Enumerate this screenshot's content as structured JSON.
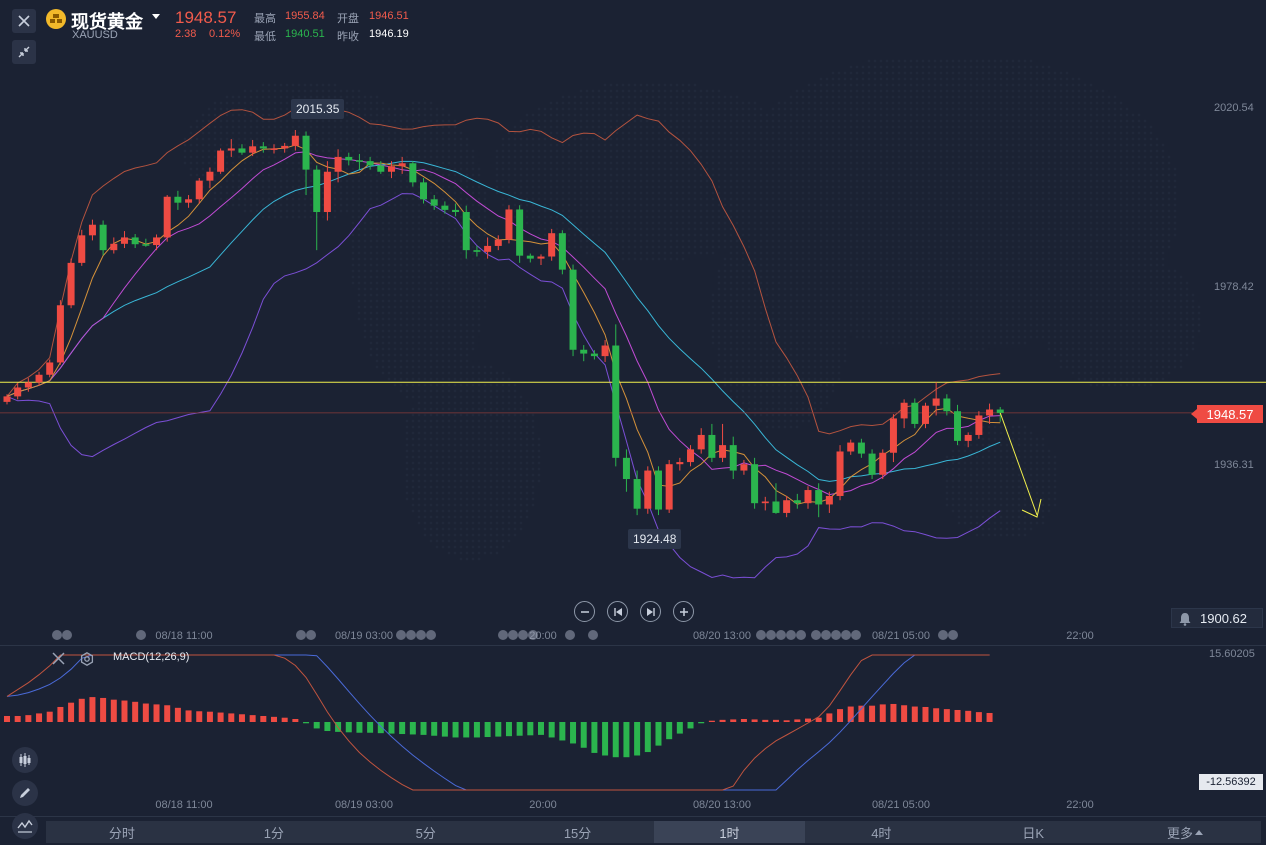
{
  "header": {
    "title": "现货黄金",
    "symbol": "XAUUSD",
    "price": "1948.57",
    "change": "2.38",
    "change_pct": "0.12%",
    "high_label": "最高",
    "high": "1955.84",
    "low_label": "最低",
    "low": "1940.51",
    "open_label": "开盘",
    "open": "1946.51",
    "prev_close_label": "昨收",
    "prev_close": "1946.19"
  },
  "price_axis": {
    "labels": [
      "2020.54",
      "1978.42",
      "1936.31"
    ],
    "current_price": "1948.57",
    "alert_value": "1900.62"
  },
  "callouts": {
    "high_marker": "2015.35",
    "low_marker": "1924.48"
  },
  "time_axis": {
    "main": [
      "08/18 11:00",
      "08/19 03:00",
      "20:00",
      "08/20 13:00",
      "08/21 05:00",
      "22:00"
    ],
    "macd": [
      "08/18 11:00",
      "08/19 03:00",
      "20:00",
      "08/20 13:00",
      "08/21 05:00",
      "22:00"
    ]
  },
  "macd": {
    "title": "MACD(12,26,9)",
    "top_label": "15.60205",
    "bottom_label": "-12.56392",
    "bottom_hidden": "-15.60205"
  },
  "tabs": [
    "分时",
    "1分",
    "5分",
    "15分",
    "1时",
    "4时",
    "日K",
    "更多"
  ],
  "active_tab": "1时",
  "colors": {
    "up": "#ef4b43",
    "down": "#2bb54e",
    "background": "#1b2233",
    "hline": "#f2f04c",
    "current_price": "#ef4b43"
  },
  "icons": [
    "close-icon",
    "gold-logo-icon",
    "dropdown-arrow-icon",
    "compress-icon",
    "zoom-out-icon",
    "prev-icon",
    "next-icon",
    "zoom-in-icon",
    "bell-icon",
    "settings-icon",
    "candlestick-tool-icon",
    "pencil-icon",
    "indicator-icon"
  ],
  "chart_data": [
    {
      "type": "candlestick",
      "title": "现货黄金 XAUUSD",
      "interval": "1时",
      "ylim": [
        1900.62,
        2028.0
      ],
      "series": [
        {
          "name": "",
          "values": [
            [
              1951.2,
              1953.0,
              1950.6,
              1952.5
            ],
            [
              1952.5,
              1955.5,
              1951.8,
              1954.6
            ],
            [
              1954.6,
              1956.8,
              1953.6,
              1955.8
            ],
            [
              1955.8,
              1958.3,
              1955.0,
              1957.6
            ],
            [
              1957.6,
              1961.2,
              1957.0,
              1960.5
            ],
            [
              1960.5,
              1975.2,
              1960.0,
              1974.0
            ],
            [
              1974.0,
              1985.0,
              1973.3,
              1984.0
            ],
            [
              1984.0,
              1991.8,
              1983.3,
              1990.5
            ],
            [
              1990.5,
              1994.2,
              1989.3,
              1993.0
            ],
            [
              1993.0,
              1994.0,
              1985.8,
              1987.0
            ],
            [
              1987.0,
              1990.0,
              1986.2,
              1988.5
            ],
            [
              1988.5,
              1991.5,
              1987.5,
              1990.0
            ],
            [
              1990.0,
              1990.8,
              1987.5,
              1988.4
            ],
            [
              1988.4,
              1989.7,
              1987.8,
              1988.2
            ],
            [
              1988.2,
              1990.7,
              1987.0,
              1990.0
            ],
            [
              1990.0,
              2000.0,
              1989.0,
              1999.6
            ],
            [
              1999.6,
              2001.0,
              1996.5,
              1998.2
            ],
            [
              1998.2,
              2000.0,
              1997.0,
              1999.0
            ],
            [
              1999.0,
              2004.0,
              1998.0,
              2003.4
            ],
            [
              2003.4,
              2006.5,
              2001.6,
              2005.5
            ],
            [
              2005.5,
              2011.0,
              2005.0,
              2010.5
            ],
            [
              2010.5,
              2013.2,
              2009.0,
              2011.0
            ],
            [
              2011.0,
              2012.0,
              2009.5,
              2010.0
            ],
            [
              2010.0,
              2013.0,
              2009.2,
              2011.5
            ],
            [
              2011.5,
              2012.5,
              2010.0,
              2011.0
            ],
            [
              2011.0,
              2012.0,
              2009.8,
              2011.0
            ],
            [
              2011.0,
              2012.3,
              2010.0,
              2011.6
            ],
            [
              2011.6,
              2015.35,
              2010.5,
              2014.0
            ],
            [
              2014.0,
              2015.0,
              2000.0,
              2006.0
            ],
            [
              2006.0,
              2007.0,
              1987.0,
              1996.0
            ],
            [
              1996.0,
              2008.0,
              1994.0,
              2005.5
            ],
            [
              2005.5,
              2010.8,
              2003.0,
              2009.0
            ],
            [
              2009.0,
              2010.0,
              2007.0,
              2008.2
            ],
            [
              2008.2,
              2009.7,
              2006.0,
              2008.0
            ],
            [
              2008.0,
              2009.0,
              2006.0,
              2007.0
            ],
            [
              2007.0,
              2008.0,
              2005.0,
              2005.5
            ],
            [
              2005.5,
              2008.0,
              2004.0,
              2006.8
            ],
            [
              2006.8,
              2009.0,
              2005.0,
              2007.5
            ],
            [
              2007.5,
              2008.0,
              2002.0,
              2003.0
            ],
            [
              2003.0,
              2004.0,
              1998.0,
              1999.0
            ],
            [
              1999.0,
              2000.0,
              1996.5,
              1997.5
            ],
            [
              1997.5,
              1998.5,
              1995.6,
              1996.5
            ],
            [
              1996.5,
              1998.0,
              1995.0,
              1996.0
            ],
            [
              1996.0,
              1997.5,
              1985.0,
              1987.0
            ],
            [
              1987.0,
              1988.0,
              1985.5,
              1986.6
            ],
            [
              1986.6,
              1990.0,
              1985.0,
              1988.0
            ],
            [
              1988.0,
              1990.5,
              1987.0,
              1989.5
            ],
            [
              1989.5,
              1997.6,
              1988.6,
              1996.6
            ],
            [
              1996.6,
              1997.6,
              1984.0,
              1985.7
            ],
            [
              1985.7,
              1986.2,
              1984.1,
              1985.0
            ],
            [
              1985.0,
              1986.0,
              1983.5,
              1985.5
            ],
            [
              1985.5,
              1992.0,
              1984.5,
              1991.0
            ],
            [
              1991.0,
              1991.7,
              1981.3,
              1982.4
            ],
            [
              1982.4,
              1983.6,
              1962.0,
              1963.5
            ],
            [
              1963.5,
              1964.6,
              1960.8,
              1962.6
            ],
            [
              1962.6,
              1963.4,
              1961.2,
              1962.0
            ],
            [
              1962.0,
              1965.8,
              1960.6,
              1964.5
            ],
            [
              1964.5,
              1969.5,
              1936.0,
              1938.0
            ],
            [
              1938.0,
              1940.0,
              1930.0,
              1933.0
            ],
            [
              1933.0,
              1935.0,
              1924.48,
              1926.0
            ],
            [
              1926.0,
              1936.0,
              1924.8,
              1935.0
            ],
            [
              1935.0,
              1936.0,
              1924.5,
              1925.8
            ],
            [
              1925.8,
              1937.5,
              1925.0,
              1936.5
            ],
            [
              1936.5,
              1938.0,
              1935.0,
              1937.0
            ],
            [
              1937.0,
              1941.0,
              1936.0,
              1940.0
            ],
            [
              1940.0,
              1945.0,
              1939.0,
              1943.4
            ],
            [
              1943.4,
              1946.0,
              1937.0,
              1938.0
            ],
            [
              1938.0,
              1946.0,
              1937.0,
              1941.0
            ],
            [
              1941.0,
              1943.0,
              1933.0,
              1935.0
            ],
            [
              1935.0,
              1937.5,
              1934.0,
              1936.5
            ],
            [
              1936.5,
              1938.0,
              1926.0,
              1927.3
            ],
            [
              1927.3,
              1928.8,
              1925.6,
              1927.7
            ],
            [
              1927.7,
              1932.0,
              1924.8,
              1925.0
            ],
            [
              1925.0,
              1929.0,
              1924.0,
              1928.0
            ],
            [
              1928.0,
              1929.5,
              1926.0,
              1927.3
            ],
            [
              1927.3,
              1931.3,
              1926.0,
              1930.4
            ],
            [
              1930.4,
              1932.0,
              1924.0,
              1927.0
            ],
            [
              1927.0,
              1930.0,
              1925.0,
              1929.0
            ],
            [
              1929.0,
              1941.0,
              1928.0,
              1939.5
            ],
            [
              1939.5,
              1942.3,
              1938.7,
              1941.6
            ],
            [
              1941.6,
              1942.5,
              1938.0,
              1939.0
            ],
            [
              1939.0,
              1940.0,
              1933.0,
              1934.0
            ],
            [
              1934.0,
              1940.0,
              1933.0,
              1939.2
            ],
            [
              1939.2,
              1948.3,
              1937.0,
              1947.3
            ],
            [
              1947.3,
              1951.8,
              1945.0,
              1951.0
            ],
            [
              1951.0,
              1952.0,
              1945.0,
              1946.0
            ],
            [
              1946.0,
              1951.0,
              1945.0,
              1950.3
            ],
            [
              1950.3,
              1955.84,
              1948.0,
              1952.0
            ],
            [
              1952.0,
              1953.0,
              1948.0,
              1949.0
            ],
            [
              1949.0,
              1950.5,
              1941.0,
              1942.0
            ],
            [
              1942.0,
              1944.0,
              1940.51,
              1943.4
            ],
            [
              1943.4,
              1949.0,
              1942.5,
              1948.0
            ],
            [
              1948.0,
              1950.8,
              1946.0,
              1949.4
            ],
            [
              1949.4,
              1950.0,
              1946.5,
              1948.6
            ]
          ]
        }
      ],
      "lines": [
        {
          "name": "hline",
          "value": 1955.84
        }
      ]
    },
    {
      "type": "bar",
      "title": "MACD(12,26,9)",
      "ylim": [
        -15.60205,
        15.60205
      ],
      "series": [
        {
          "name": "",
          "values": [
            1.4,
            1.4,
            1.6,
            2.0,
            2.4,
            3.5,
            4.5,
            5.4,
            5.8,
            5.6,
            5.2,
            5.0,
            4.7,
            4.3,
            4.1,
            3.9,
            3.3,
            2.7,
            2.5,
            2.4,
            2.2,
            2.0,
            1.8,
            1.6,
            1.4,
            1.2,
            1.0,
            0.7,
            -0.3,
            -1.5,
            -2.1,
            -2.3,
            -2.4,
            -2.5,
            -2.5,
            -2.6,
            -2.7,
            -2.8,
            -2.9,
            -3.0,
            -3.2,
            -3.4,
            -3.6,
            -3.6,
            -3.6,
            -3.5,
            -3.4,
            -3.3,
            -3.2,
            -3.1,
            -3.0,
            -3.6,
            -4.3,
            -5.0,
            -6.0,
            -7.2,
            -7.8,
            -8.2,
            -8.2,
            -7.8,
            -7.0,
            -5.5,
            -4.0,
            -2.7,
            -1.5,
            -0.3,
            0.3,
            0.5,
            0.6,
            0.7,
            0.6,
            0.5,
            0.5,
            0.4,
            0.6,
            0.8,
            1.0,
            2.0,
            3.0,
            3.6,
            3.8,
            3.8,
            4.1,
            4.2,
            3.9,
            3.6,
            3.5,
            3.2,
            3.0,
            2.8,
            2.6,
            2.3,
            2.1
          ]
        }
      ]
    }
  ]
}
